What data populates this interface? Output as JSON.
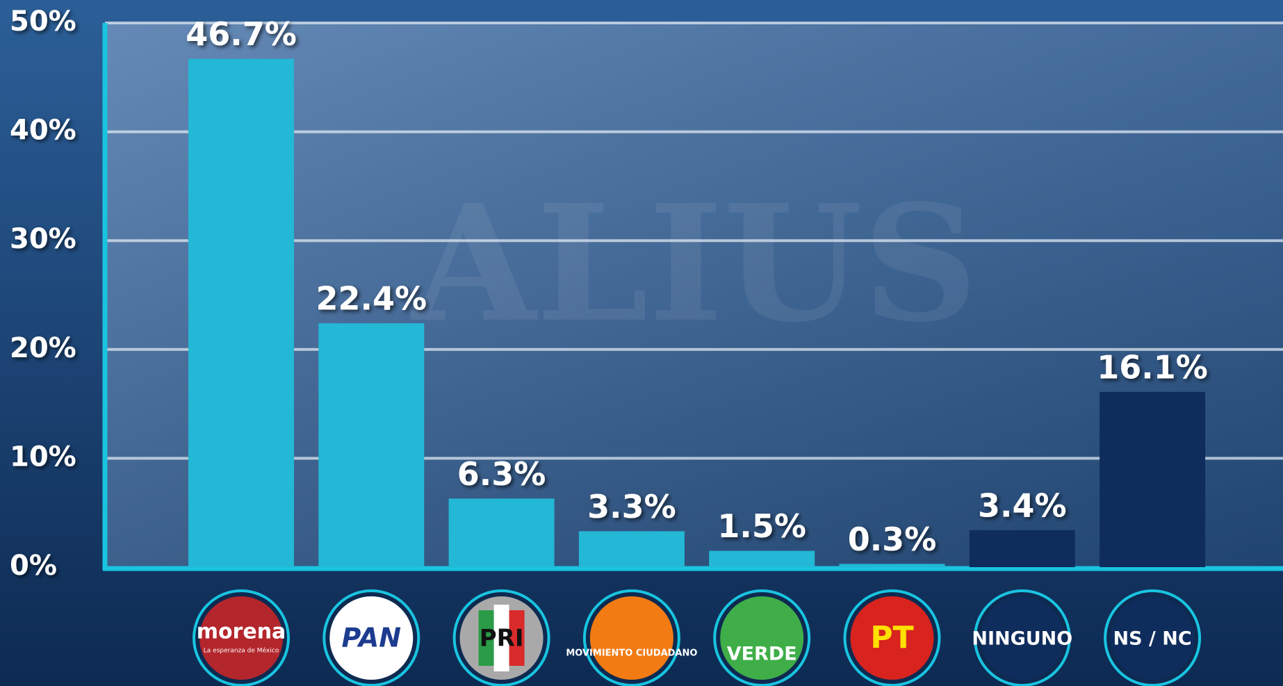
{
  "chart_data": {
    "type": "bar",
    "watermark": "ALIUS",
    "categories": [
      "morena",
      "PAN",
      "PRI",
      "MOVIMIENTO CIUDADANO",
      "VERDE",
      "PT",
      "NINGUNO",
      "NS / NC"
    ],
    "morena_tagline": "La esperanza de México",
    "values": [
      46.7,
      22.4,
      6.3,
      3.3,
      1.5,
      0.3,
      3.4,
      16.1
    ],
    "value_labels": [
      "46.7%",
      "22.4%",
      "6.3%",
      "3.3%",
      "1.5%",
      "0.3%",
      "3.4%",
      "16.1%"
    ],
    "colors": [
      "#22b8d6",
      "#22b8d6",
      "#22b8d6",
      "#22b8d6",
      "#22b8d6",
      "#22b8d6",
      "#0f2d5c",
      "#0f2d5c"
    ],
    "ylim": [
      0,
      50
    ],
    "yticks": [
      {
        "value": 0,
        "label": "0%"
      },
      {
        "value": 10,
        "label": "10%"
      },
      {
        "value": 20,
        "label": "20%"
      },
      {
        "value": 30,
        "label": "30%"
      },
      {
        "value": 40,
        "label": "40%"
      },
      {
        "value": 50,
        "label": "50%"
      }
    ],
    "grid": true
  }
}
